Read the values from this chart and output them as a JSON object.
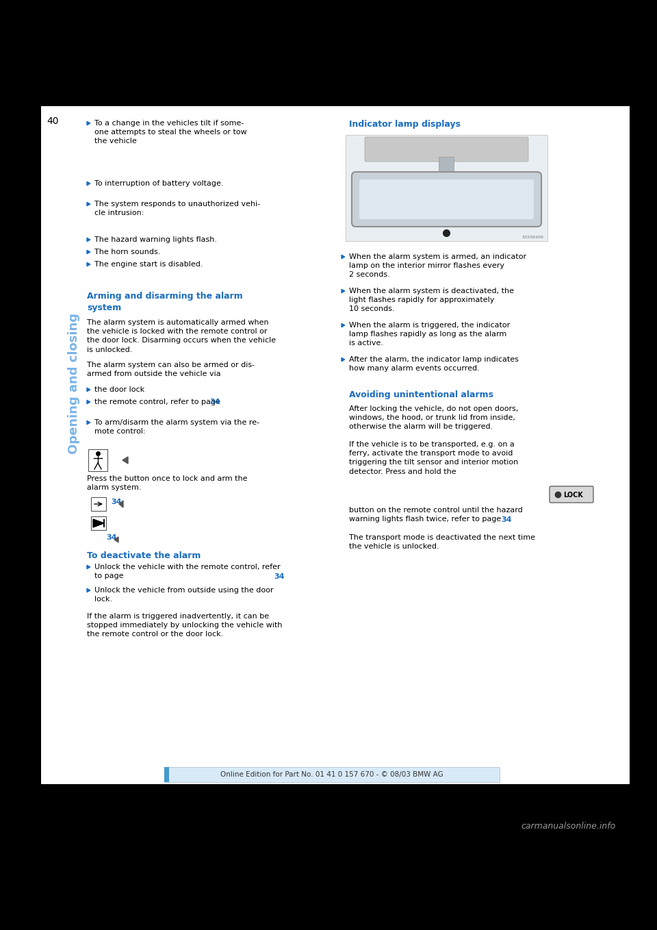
{
  "bg_color": "#000000",
  "white": "#ffffff",
  "blue_color": "#1a6dc0",
  "light_blue": "#7ab4e8",
  "black": "#000000",
  "gray_mid": "#888888",
  "footer_bg": "#d8eaf8",
  "footer_bar": "#4499cc",
  "sidebar_text": "Opening and closing",
  "page_number": "40",
  "bullet_items": [
    "To a change in the vehicles tilt if some-\none attempts to steal the wheels or tow\nthe vehicle",
    "To interruption of battery voltage.",
    "The system responds to unauthorized vehi-\ncle intrusion:",
    "The hazard warning lights flash.",
    "The horn sounds.",
    "The engine start is disabled."
  ],
  "heading_arming": "Arming and disarming the alarm\nsystem",
  "text_arming1": "The alarm system is automatically armed when\nthe vehicle is locked with the remote control or\nthe door lock. Disarming occurs when the vehicle\nis unlocked.",
  "text_arming2": "The alarm system can also be armed or dis-\narmed from outside the vehicle via",
  "bullet_doorlock": "the door lock",
  "bullet_remote": "the remote control, refer to page",
  "page_ref_remote": "34",
  "bullet_arm_disarm": "To arm/disarm the alarm system via the re-\nmote control:",
  "text_press_button": "Press the button once to lock and arm the\nalarm system.",
  "page_ref_arm": "34",
  "heading_deactivate": "To deactivate the alarm",
  "bullet_deact1": "Unlock the vehicle with the remote control, refer\nto page",
  "page_ref_deact1": "34",
  "bullet_deact2": "Unlock the vehicle from outside using the door\nlock.",
  "text_deact3": "If the alarm is triggered inadvertently, it can be\nstopped immediately by unlocking the vehicle with\nthe remote control or the door lock.",
  "heading_indicator": "Indicator lamp displays",
  "bullet_ind1": "When the alarm system is armed, an indicator\nlamp on the interior mirror flashes every\n2 seconds.",
  "bullet_ind2": "When the alarm system is deactivated, the\nlight flashes rapidly for approximately\n10 seconds.",
  "bullet_ind3": "When the alarm is triggered, the indicator\nlamp flashes rapidly as long as the alarm\nis active.",
  "bullet_ind4": "After the alarm, the indicator lamp indicates\nhow many alarm events occurred.",
  "heading_avoiding": "Avoiding unintentional alarms",
  "text_avoid1": "After locking the vehicle, do not open doors,\nwindows, the hood, or trunk lid from inside,\notherwise the alarm will be triggered.",
  "text_avoid2": "If the vehicle is to be transported, e.g. on a\nferry, activate the transport mode to avoid\ntriggering the tilt sensor and interior motion\ndetector. Press and hold the",
  "lock_btn": "LOCK",
  "text_avoid3": "button on the remote control until the hazard\nwarning lights flash twice, refer to page",
  "page_ref_avoid": "34",
  "text_avoid4": "The transport mode is deactivated the next time\nthe vehicle is unlocked.",
  "footer_text": "Online Edition for Part No. 01 41 0 157 670 - © 08/03 BMW AG",
  "watermark": "carmanualsonline.info"
}
